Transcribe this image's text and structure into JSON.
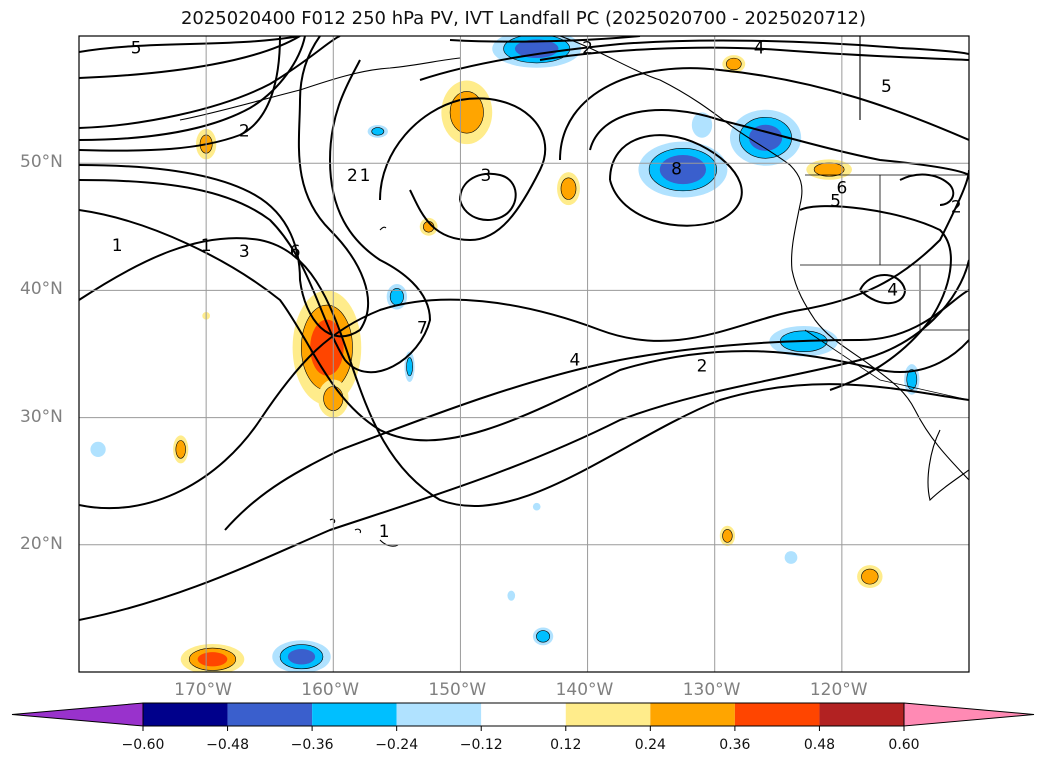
{
  "title": "2025020400 F012 250 hPa PV, IVT Landfall PC (2025020700 - 2025020712)",
  "map": {
    "lon_range": [
      -180,
      -110
    ],
    "lat_range": [
      10,
      60
    ],
    "lat_ticks": [
      {
        "value": 20,
        "label": "20°N"
      },
      {
        "value": 30,
        "label": "30°N"
      },
      {
        "value": 40,
        "label": "40°N"
      },
      {
        "value": 50,
        "label": "50°N"
      }
    ],
    "lon_ticks": [
      {
        "value": -170,
        "label": "170°W"
      },
      {
        "value": -160,
        "label": "160°W"
      },
      {
        "value": -150,
        "label": "150°W"
      },
      {
        "value": -140,
        "label": "140°W"
      },
      {
        "value": -130,
        "label": "130°W"
      },
      {
        "value": -120,
        "label": "120°W"
      }
    ],
    "contour_labels": [
      {
        "text": "5",
        "lon": -175.5,
        "lat": 59
      },
      {
        "text": "2",
        "lon": -140,
        "lat": 59
      },
      {
        "text": "4",
        "lon": -126.5,
        "lat": 59
      },
      {
        "text": "5",
        "lon": -116.5,
        "lat": 56
      },
      {
        "text": "2",
        "lon": -167,
        "lat": 52.5
      },
      {
        "text": "3",
        "lon": -148,
        "lat": 49
      },
      {
        "text": "8",
        "lon": -133,
        "lat": 49.5
      },
      {
        "text": "2",
        "lon": -158.5,
        "lat": 49
      },
      {
        "text": "1",
        "lon": -157.5,
        "lat": 49
      },
      {
        "text": "6",
        "lon": -120,
        "lat": 48
      },
      {
        "text": "5",
        "lon": -120.5,
        "lat": 47
      },
      {
        "text": "2",
        "lon": -111,
        "lat": 46.5
      },
      {
        "text": "1",
        "lon": -177,
        "lat": 43.5
      },
      {
        "text": "1",
        "lon": -170,
        "lat": 43.5
      },
      {
        "text": "3",
        "lon": -167,
        "lat": 43
      },
      {
        "text": "6",
        "lon": -163,
        "lat": 43
      },
      {
        "text": "4",
        "lon": -116,
        "lat": 40
      },
      {
        "text": "7",
        "lon": -153,
        "lat": 37
      },
      {
        "text": "4",
        "lon": -141,
        "lat": 34.5
      },
      {
        "text": "2",
        "lon": -131,
        "lat": 34
      },
      {
        "text": "1",
        "lon": -156,
        "lat": 21
      }
    ],
    "pc_blobs": [
      {
        "lon": -144,
        "lat": 59,
        "rx": 3.5,
        "ry": 1.5,
        "value": -0.42
      },
      {
        "lon": -126,
        "lat": 52,
        "rx": 2.8,
        "ry": 2.2,
        "value": -0.4
      },
      {
        "lon": -132.5,
        "lat": 49.5,
        "rx": 3.5,
        "ry": 2.2,
        "value": -0.45
      },
      {
        "lon": -131,
        "lat": 53,
        "rx": 0.8,
        "ry": 1,
        "value": -0.2
      },
      {
        "lon": -156.5,
        "lat": 52.5,
        "rx": 0.8,
        "ry": 0.5,
        "value": -0.25
      },
      {
        "lon": -155,
        "lat": 39.5,
        "rx": 0.8,
        "ry": 1,
        "value": -0.3
      },
      {
        "lon": -154,
        "lat": 34,
        "rx": 0.4,
        "ry": 1.2,
        "value": -0.25
      },
      {
        "lon": -123,
        "lat": 36,
        "rx": 2.7,
        "ry": 1.2,
        "value": -0.33
      },
      {
        "lon": -114.5,
        "lat": 33,
        "rx": 0.6,
        "ry": 1.2,
        "value": -0.3
      },
      {
        "lon": -162.5,
        "lat": 11.2,
        "rx": 2.3,
        "ry": 1.3,
        "value": -0.4
      },
      {
        "lon": -143.5,
        "lat": 12.8,
        "rx": 0.8,
        "ry": 0.7,
        "value": -0.3
      },
      {
        "lon": -178.5,
        "lat": 27.5,
        "rx": 0.6,
        "ry": 0.6,
        "value": -0.2
      },
      {
        "lon": -124,
        "lat": 19,
        "rx": 0.5,
        "ry": 0.5,
        "value": -0.2
      },
      {
        "lon": -144,
        "lat": 23,
        "rx": 0.3,
        "ry": 0.3,
        "value": -0.15
      },
      {
        "lon": -146,
        "lat": 16,
        "rx": 0.3,
        "ry": 0.4,
        "value": -0.15
      },
      {
        "lon": -160.5,
        "lat": 35.5,
        "rx": 2.7,
        "ry": 4.5,
        "value": 0.42
      },
      {
        "lon": -160,
        "lat": 31.5,
        "rx": 1.2,
        "ry": 1.5,
        "value": 0.28
      },
      {
        "lon": -169.5,
        "lat": 11,
        "rx": 2.5,
        "ry": 1.2,
        "value": 0.4
      },
      {
        "lon": -149.5,
        "lat": 54,
        "rx": 2,
        "ry": 2.5,
        "value": 0.3
      },
      {
        "lon": -141.5,
        "lat": 48,
        "rx": 0.9,
        "ry": 1.3,
        "value": 0.3
      },
      {
        "lon": -128.5,
        "lat": 57.8,
        "rx": 0.9,
        "ry": 0.7,
        "value": 0.3
      },
      {
        "lon": -121,
        "lat": 49.5,
        "rx": 1.8,
        "ry": 0.8,
        "value": 0.3
      },
      {
        "lon": -170,
        "lat": 51.5,
        "rx": 0.8,
        "ry": 1.2,
        "value": 0.25
      },
      {
        "lon": -152.5,
        "lat": 45,
        "rx": 0.7,
        "ry": 0.7,
        "value": 0.25
      },
      {
        "lon": -172,
        "lat": 27.5,
        "rx": 0.6,
        "ry": 1.1,
        "value": 0.28
      },
      {
        "lon": -129,
        "lat": 20.7,
        "rx": 0.6,
        "ry": 0.8,
        "value": 0.28
      },
      {
        "lon": -117.8,
        "lat": 17.5,
        "rx": 1,
        "ry": 0.9,
        "value": 0.3
      },
      {
        "lon": -170,
        "lat": 38,
        "rx": 0.3,
        "ry": 0.3,
        "value": 0.2
      }
    ]
  },
  "colorbar": {
    "levels": [
      "−0.60",
      "−0.48",
      "−0.36",
      "−0.24",
      "−0.12",
      "0.12",
      "0.24",
      "0.36",
      "0.48",
      "0.60"
    ],
    "colors": {
      "under": "#9932cc",
      "bins": [
        "#00008b",
        "#3a5fcd",
        "#00bfff",
        "#b0e2ff",
        "#ffffff",
        "#ffec8b",
        "#ffa500",
        "#ff4500",
        "#b22222"
      ],
      "over": "#ff8ab4"
    }
  }
}
